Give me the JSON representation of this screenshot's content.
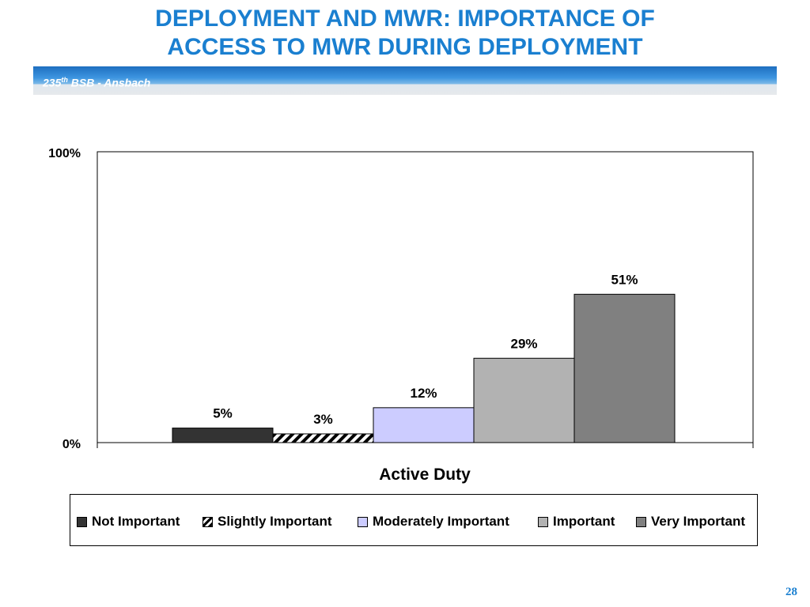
{
  "header": {
    "title_line1": "DEPLOYMENT AND MWR: IMPORTANCE OF",
    "title_line2": "ACCESS TO MWR DURING DEPLOYMENT",
    "band_base": "235",
    "band_sup": "th",
    "band_rest": " BSB - Ansbach",
    "title_color": "#1a7fd0"
  },
  "chart_data": {
    "type": "bar",
    "categories": [
      "Active Duty"
    ],
    "xlabel": "Active Duty",
    "ylim": [
      0,
      100
    ],
    "yticks": [
      "0%",
      "100%"
    ],
    "grid": false,
    "legend_position": "bottom",
    "series": [
      {
        "name": "Not Important",
        "values": [
          5
        ],
        "label": "5%",
        "color": "#333333",
        "pattern": "solid"
      },
      {
        "name": "Slightly Important",
        "values": [
          3
        ],
        "label": "3%",
        "color": "#ffffff",
        "pattern": "hatch"
      },
      {
        "name": "Moderately Important",
        "values": [
          12
        ],
        "label": "12%",
        "color": "#ccccff",
        "pattern": "solid"
      },
      {
        "name": "Important",
        "values": [
          29
        ],
        "label": "29%",
        "color": "#b2b2b2",
        "pattern": "solid"
      },
      {
        "name": "Very Important",
        "values": [
          51
        ],
        "label": "51%",
        "color": "#808080",
        "pattern": "solid"
      }
    ]
  },
  "footer": {
    "page_number": "28"
  }
}
